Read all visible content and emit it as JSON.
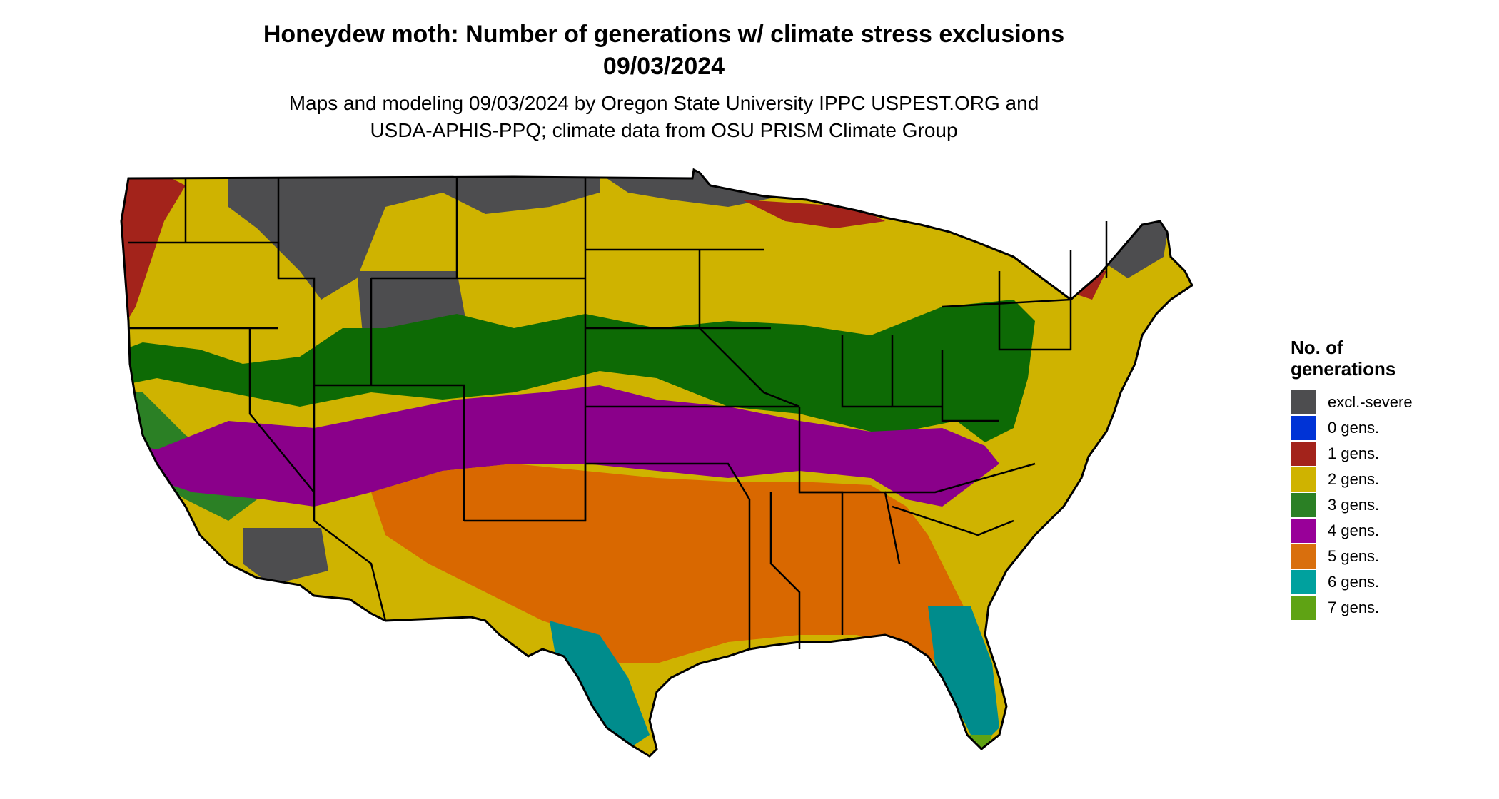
{
  "title_line1": "Honeydew moth: Number of generations w/ climate stress exclusions",
  "title_line2": "09/03/2024",
  "subtitle_line1": "Maps and modeling 09/03/2024 by Oregon State University IPPC USPEST.ORG and",
  "subtitle_line2": "USDA-APHIS-PPQ; climate data from OSU PRISM Climate Group",
  "legend": {
    "title_line1": "No. of",
    "title_line2": "generations",
    "items": [
      {
        "label": "excl.-severe",
        "color": "#4d4d4f"
      },
      {
        "label": "0 gens.",
        "color": "#0033d6"
      },
      {
        "label": "1 gens.",
        "color": "#a3231b"
      },
      {
        "label": "2 gens.",
        "color": "#cfb300"
      },
      {
        "label": "3 gens.",
        "color": "#2b8025"
      },
      {
        "label": "4 gens.",
        "color": "#990099"
      },
      {
        "label": "5 gens.",
        "color": "#d96f0d"
      },
      {
        "label": "6 gens.",
        "color": "#00a19e"
      },
      {
        "label": "7 gens.",
        "color": "#5fa314"
      }
    ]
  }
}
